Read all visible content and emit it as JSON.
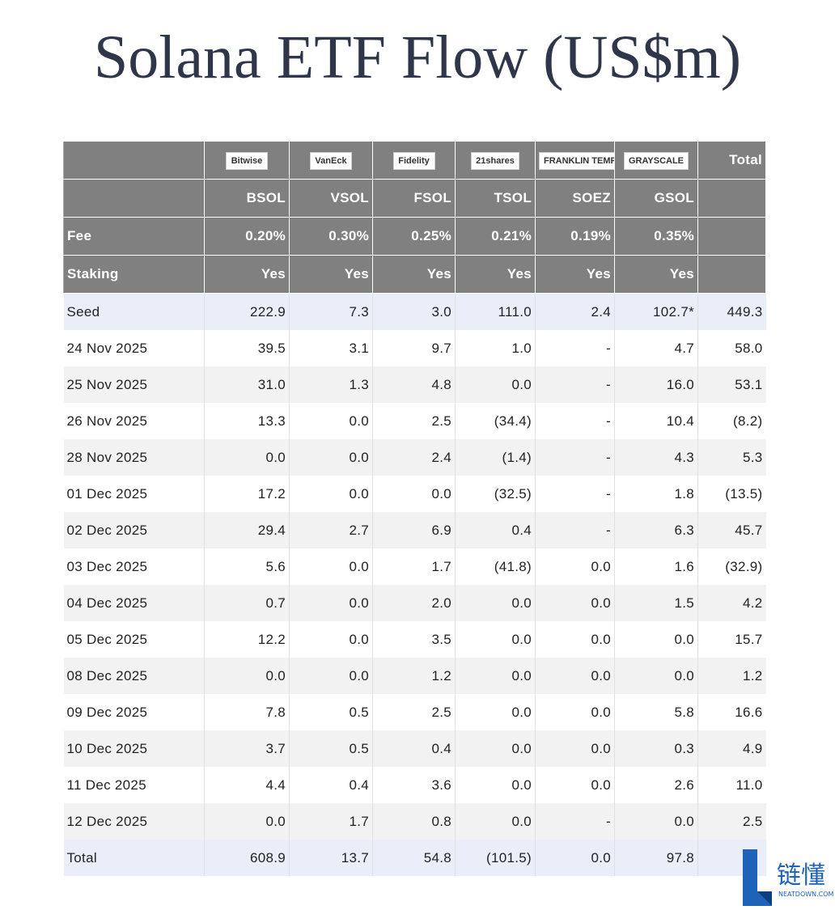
{
  "title": "Solana ETF Flow (US$m)",
  "table": {
    "logos": [
      "Bitwise",
      "VanEck",
      "Fidelity",
      "21shares",
      "FRANKLIN TEMPLETON",
      "GRAYSCALE"
    ],
    "total_label": "Total",
    "tickers": [
      "BSOL",
      "VSOL",
      "FSOL",
      "TSOL",
      "SOEZ",
      "GSOL"
    ],
    "fee": {
      "label": "Fee",
      "values": [
        "0.20%",
        "0.30%",
        "0.25%",
        "0.21%",
        "0.19%",
        "0.35%"
      ]
    },
    "staking": {
      "label": "Staking",
      "values": [
        "Yes",
        "Yes",
        "Yes",
        "Yes",
        "Yes",
        "Yes"
      ]
    },
    "rows": [
      [
        "Seed",
        "222.9",
        "7.3",
        "3.0",
        "111.0",
        "2.4",
        "102.7*",
        "449.3"
      ],
      [
        "24 Nov 2025",
        "39.5",
        "3.1",
        "9.7",
        "1.0",
        "-",
        "4.7",
        "58.0"
      ],
      [
        "25 Nov 2025",
        "31.0",
        "1.3",
        "4.8",
        "0.0",
        "-",
        "16.0",
        "53.1"
      ],
      [
        "26 Nov 2025",
        "13.3",
        "0.0",
        "2.5",
        "(34.4)",
        "-",
        "10.4",
        "(8.2)"
      ],
      [
        "28 Nov 2025",
        "0.0",
        "0.0",
        "2.4",
        "(1.4)",
        "-",
        "4.3",
        "5.3"
      ],
      [
        "01 Dec 2025",
        "17.2",
        "0.0",
        "0.0",
        "(32.5)",
        "-",
        "1.8",
        "(13.5)"
      ],
      [
        "02 Dec 2025",
        "29.4",
        "2.7",
        "6.9",
        "0.4",
        "-",
        "6.3",
        "45.7"
      ],
      [
        "03 Dec 2025",
        "5.6",
        "0.0",
        "1.7",
        "(41.8)",
        "0.0",
        "1.6",
        "(32.9)"
      ],
      [
        "04 Dec 2025",
        "0.7",
        "0.0",
        "2.0",
        "0.0",
        "0.0",
        "1.5",
        "4.2"
      ],
      [
        "05 Dec 2025",
        "12.2",
        "0.0",
        "3.5",
        "0.0",
        "0.0",
        "0.0",
        "15.7"
      ],
      [
        "08 Dec 2025",
        "0.0",
        "0.0",
        "1.2",
        "0.0",
        "0.0",
        "0.0",
        "1.2"
      ],
      [
        "09 Dec 2025",
        "7.8",
        "0.5",
        "2.5",
        "0.0",
        "0.0",
        "5.8",
        "16.6"
      ],
      [
        "10 Dec 2025",
        "3.7",
        "0.5",
        "0.4",
        "0.0",
        "0.0",
        "0.3",
        "4.9"
      ],
      [
        "11 Dec 2025",
        "4.4",
        "0.4",
        "3.6",
        "0.0",
        "0.0",
        "2.6",
        "11.0"
      ],
      [
        "12 Dec 2025",
        "0.0",
        "1.7",
        "0.8",
        "0.0",
        "-",
        "0.0",
        "2.5"
      ]
    ],
    "total_row": [
      "Total",
      "608.9",
      "13.7",
      "54.8",
      "(101.5)",
      "0.0",
      "97.8"
    ]
  },
  "watermark": {
    "text": "链懂",
    "site": "NEATDOWN.COM"
  }
}
